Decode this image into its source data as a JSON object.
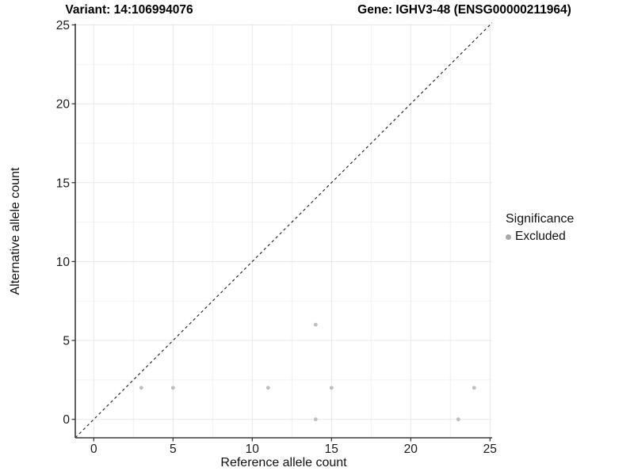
{
  "page": {
    "background": "#ffffff"
  },
  "chart_data": {
    "type": "scatter",
    "title_left": "Variant: 14:106994076",
    "title_right": "Gene: IGHV3-48 (ENSG00000211964)",
    "xlabel": "Reference allele count",
    "ylabel": "Alternative allele count",
    "xlim": [
      -1.2,
      25.2
    ],
    "ylim": [
      -1.2,
      25.2
    ],
    "x_ticks": [
      0,
      5,
      10,
      15,
      20,
      25
    ],
    "y_ticks": [
      0,
      5,
      10,
      15,
      20,
      25
    ],
    "x_minor_ticks": [
      2.5,
      7.5,
      12.5,
      17.5,
      22.5
    ],
    "y_minor_ticks": [
      2.5,
      7.5,
      12.5,
      17.5,
      22.5
    ],
    "grid": true,
    "reference_line": {
      "type": "abline",
      "slope": 1,
      "intercept": 0,
      "style": "dashed",
      "color": "#1a1a1a"
    },
    "series": [
      {
        "name": "Excluded",
        "color": "#bebebe",
        "points": [
          {
            "x": 3,
            "y": 2
          },
          {
            "x": 5,
            "y": 2
          },
          {
            "x": 11,
            "y": 2
          },
          {
            "x": 14,
            "y": 0
          },
          {
            "x": 14,
            "y": 6
          },
          {
            "x": 15,
            "y": 2
          },
          {
            "x": 23,
            "y": 0
          },
          {
            "x": 24,
            "y": 2
          }
        ]
      }
    ],
    "legend": {
      "title": "Significance",
      "position": "right",
      "items": [
        {
          "label": "Excluded",
          "color": "#a8a8a8"
        }
      ]
    },
    "colors": {
      "grid_major": "#e8e8e8",
      "grid_minor": "#f2f2f2",
      "axis_line": "#3a3a3a",
      "tick_mark": "#333333",
      "tick_label": "#1a1a1a",
      "point": "#bebebe"
    }
  }
}
